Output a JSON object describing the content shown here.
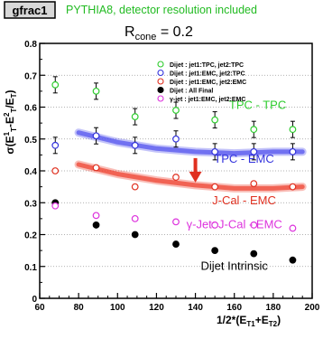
{
  "header": {
    "tag": "gfrac1",
    "subtitle": "PYTHIA8, detector resolution included",
    "rcone_main": "R",
    "rcone_sub": "cone",
    "rcone_value": " = 0.2"
  },
  "colors": {
    "green": "#2ecc2e",
    "blue": "#3333dd",
    "red": "#e03020",
    "black": "#000000",
    "magenta": "#dd33dd",
    "tag_bg": "#d8d8d8"
  },
  "chart_data": {
    "type": "scatter",
    "xlabel_text": "1/2*(E",
    "xlabel_sub1": "T1",
    "xlabel_mid": "+E",
    "xlabel_sub2": "T2",
    "xlabel_end": ")",
    "ylabel": "σ(E¹T−E²T/ET)",
    "xlim": [
      60,
      200
    ],
    "ylim": [
      0,
      0.8
    ],
    "xticks": [
      "60",
      "80",
      "100",
      "120",
      "140",
      "160",
      "180",
      "200"
    ],
    "yticks": [
      "0",
      "0.1",
      "0.2",
      "0.3",
      "0.4",
      "0.5",
      "0.6",
      "0.7",
      "0.8"
    ],
    "grid": "horizontal-dotted",
    "legend_position": "top-right",
    "series": [
      {
        "name": "Dijet : jet1:TPC, jet2:TPC",
        "color": "#2ecc2e",
        "marker": "open-circle",
        "errorbars": true,
        "x": [
          68,
          89,
          109,
          130,
          150,
          170,
          190
        ],
        "y": [
          0.67,
          0.65,
          0.57,
          0.59,
          0.56,
          0.53,
          0.53
        ]
      },
      {
        "name": "Dijet : jet1:EMC, jet2:TPC",
        "color": "#3333dd",
        "marker": "open-circle",
        "errorbars": true,
        "x": [
          68,
          89,
          109,
          130,
          150,
          170,
          190
        ],
        "y": [
          0.48,
          0.51,
          0.48,
          0.5,
          0.46,
          0.46,
          0.46
        ]
      },
      {
        "name": "Dijet : jet1:EMC, jet2:EMC",
        "color": "#e03020",
        "marker": "open-circle",
        "errorbars": false,
        "x": [
          68,
          89,
          109,
          130,
          150,
          170,
          190
        ],
        "y": [
          0.4,
          0.41,
          0.35,
          0.38,
          0.35,
          0.36,
          0.35
        ]
      },
      {
        "name": "Dijet : All Final",
        "color": "#000000",
        "marker": "filled-circle",
        "errorbars": false,
        "x": [
          68,
          89,
          109,
          130,
          150,
          170,
          190
        ],
        "y": [
          0.3,
          0.23,
          0.2,
          0.17,
          0.15,
          0.14,
          0.12
        ]
      },
      {
        "name": "γ-jet : jet1:EMC, jet2:EMC",
        "color": "#dd33dd",
        "marker": "open-circle",
        "errorbars": false,
        "x": [
          68,
          89,
          109,
          130,
          150,
          170,
          190
        ],
        "y": [
          0.29,
          0.26,
          0.25,
          0.24,
          0.23,
          0.23,
          0.22
        ]
      }
    ],
    "bands": [
      {
        "color": "#5555ee",
        "x": [
          80,
          100,
          120,
          140,
          160,
          180,
          195
        ],
        "y": [
          0.52,
          0.49,
          0.47,
          0.46,
          0.455,
          0.46,
          0.46
        ]
      },
      {
        "color": "#ee4433",
        "x": [
          80,
          100,
          120,
          140,
          160,
          180,
          195
        ],
        "y": [
          0.42,
          0.39,
          0.37,
          0.355,
          0.345,
          0.345,
          0.35
        ]
      }
    ],
    "annotations": [
      {
        "text": "TPC - TPC",
        "color": "#2ecc2e",
        "x": 172,
        "y": 0.595
      },
      {
        "text": "TPC - EMC",
        "color": "#3333dd",
        "x": 165,
        "y": 0.425
      },
      {
        "text": "J-Cal - EMC",
        "color": "#e03020",
        "x": 165,
        "y": 0.295
      },
      {
        "text": "γ-Jet: J-Cal - EMC",
        "color": "#dd33dd",
        "x": 160,
        "y": 0.22
      },
      {
        "text": "Dijet Intrinsic",
        "color": "#000000",
        "x": 160,
        "y": 0.09
      }
    ],
    "arrow": {
      "color": "#e03020",
      "x": 140,
      "y_from": 0.44,
      "y_to": 0.375
    }
  }
}
